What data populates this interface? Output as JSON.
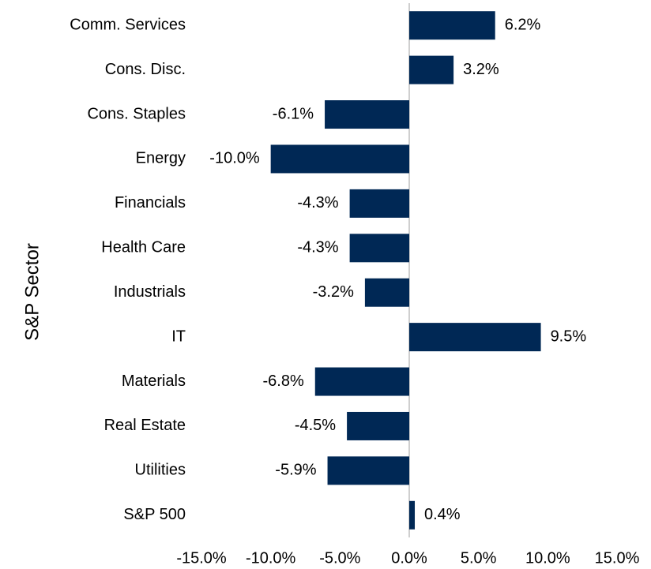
{
  "chart_data": {
    "type": "bar",
    "orientation": "horizontal",
    "y_label": "S&P Sector",
    "categories": [
      "Comm. Services",
      "Cons. Disc.",
      "Cons. Staples",
      "Energy",
      "Financials",
      "Health Care",
      "Industrials",
      "IT",
      "Materials",
      "Real Estate",
      "Utilities",
      "S&P 500"
    ],
    "values": [
      6.2,
      3.2,
      -6.1,
      -10.0,
      -4.3,
      -4.3,
      -3.2,
      9.5,
      -6.8,
      -4.5,
      -5.9,
      0.4
    ],
    "value_labels": [
      "6.2%",
      "3.2%",
      "-6.1%",
      "-10.0%",
      "-4.3%",
      "-4.3%",
      "-3.2%",
      "9.5%",
      "-6.8%",
      "-4.5%",
      "-5.9%",
      "0.4%"
    ],
    "color": "#002855",
    "xlim": [
      -15,
      15
    ],
    "xticks": [
      {
        "value": -15,
        "label": "-15.0%"
      },
      {
        "value": -10,
        "label": "-10.0%"
      },
      {
        "value": -5,
        "label": "-5.0%"
      },
      {
        "value": 0,
        "label": "0.0%"
      },
      {
        "value": 5,
        "label": "5.0%"
      },
      {
        "value": 10,
        "label": "10.0%"
      },
      {
        "value": 15,
        "label": "15.0%"
      }
    ],
    "grid": false
  }
}
